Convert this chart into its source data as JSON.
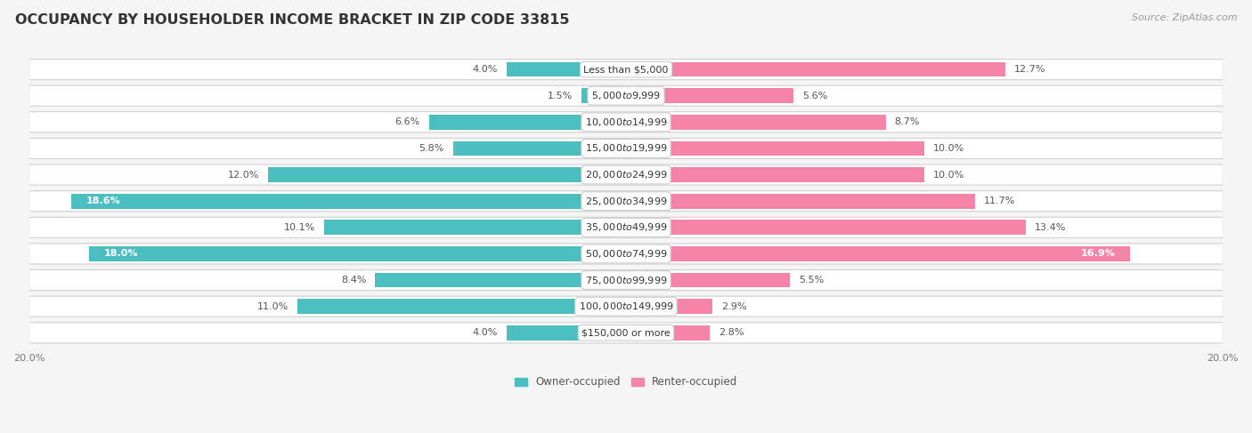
{
  "title": "OCCUPANCY BY HOUSEHOLDER INCOME BRACKET IN ZIP CODE 33815",
  "source": "Source: ZipAtlas.com",
  "categories": [
    "Less than $5,000",
    "$5,000 to $9,999",
    "$10,000 to $14,999",
    "$15,000 to $19,999",
    "$20,000 to $24,999",
    "$25,000 to $34,999",
    "$35,000 to $49,999",
    "$50,000 to $74,999",
    "$75,000 to $99,999",
    "$100,000 to $149,999",
    "$150,000 or more"
  ],
  "owner_values": [
    4.0,
    1.5,
    6.6,
    5.8,
    12.0,
    18.6,
    10.1,
    18.0,
    8.4,
    11.0,
    4.0
  ],
  "renter_values": [
    12.7,
    5.6,
    8.7,
    10.0,
    10.0,
    11.7,
    13.4,
    16.9,
    5.5,
    2.9,
    2.8
  ],
  "owner_color": "#4BBFBF",
  "renter_color": "#F584A8",
  "row_bg_color": "#f0f0f0",
  "row_stripe_color": "#e8e8e8",
  "bg_color": "#f5f5f5",
  "axis_limit": 20.0,
  "title_fontsize": 11.5,
  "source_fontsize": 8,
  "label_fontsize": 8,
  "category_fontsize": 8,
  "legend_fontsize": 8.5,
  "tick_fontsize": 8
}
